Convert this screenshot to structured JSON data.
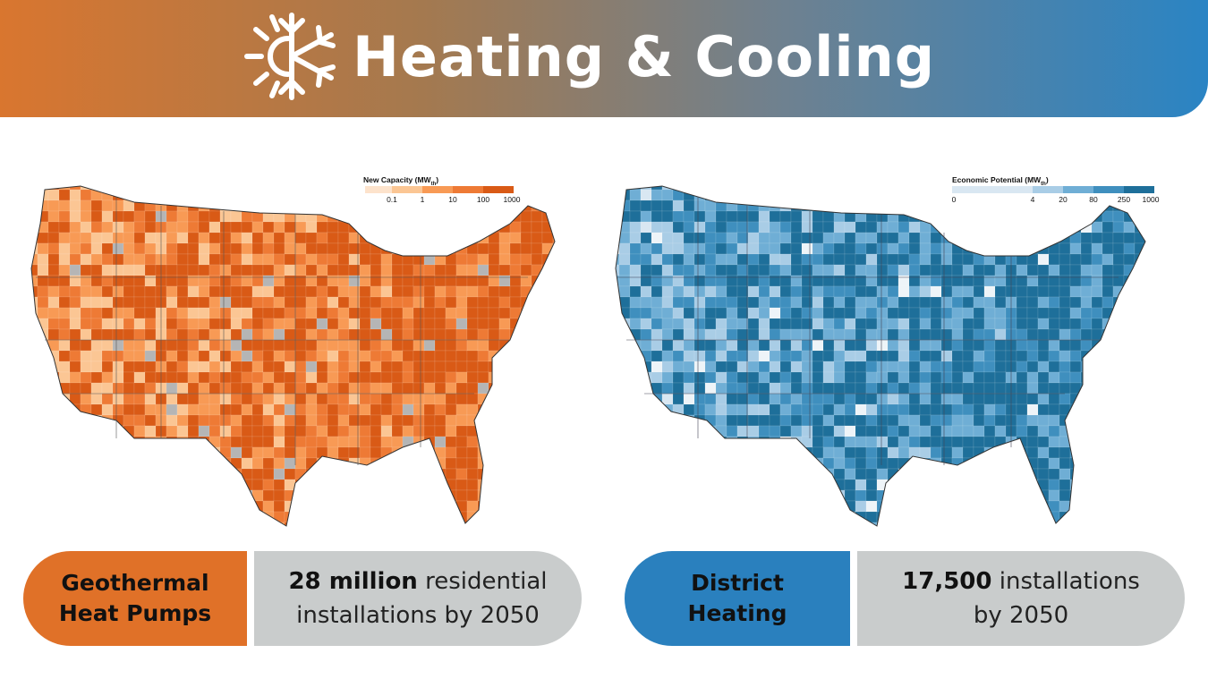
{
  "header": {
    "title": "Heating & Cooling",
    "icon": "sun-snowflake-icon"
  },
  "maps": {
    "geothermal": {
      "legend_title": "New Capacity (MW",
      "legend_sub": "th",
      "legend_ticks": [
        "0.1",
        "1",
        "10",
        "100",
        "1000"
      ],
      "colors": [
        "#fde3cc",
        "#fbc694",
        "#f89a55",
        "#ee7a35",
        "#d95a16"
      ],
      "no_data_color": "#b5b5b5"
    },
    "district": {
      "legend_title": "Economic Potential (MW",
      "legend_sub": "th",
      "legend_ticks": [
        "0",
        "4",
        "20",
        "80",
        "250",
        "1000"
      ],
      "colors": [
        "#d9e7f2",
        "#a9cde6",
        "#6faed5",
        "#3f8fbe",
        "#1e6f9a"
      ],
      "no_data_color": "#eef4f8"
    }
  },
  "callouts": {
    "geothermal": {
      "label_line1": "Geothermal",
      "label_line2": "Heat Pumps",
      "bold": "28 million",
      "rest_line1": " residential",
      "line2": "installations by 2050",
      "color": "#e07128"
    },
    "district": {
      "label_line1": "District",
      "label_line2": "Heating",
      "bold": "17,500",
      "rest_line1": " installations",
      "line2": "by 2050",
      "color": "#2a80be"
    }
  }
}
